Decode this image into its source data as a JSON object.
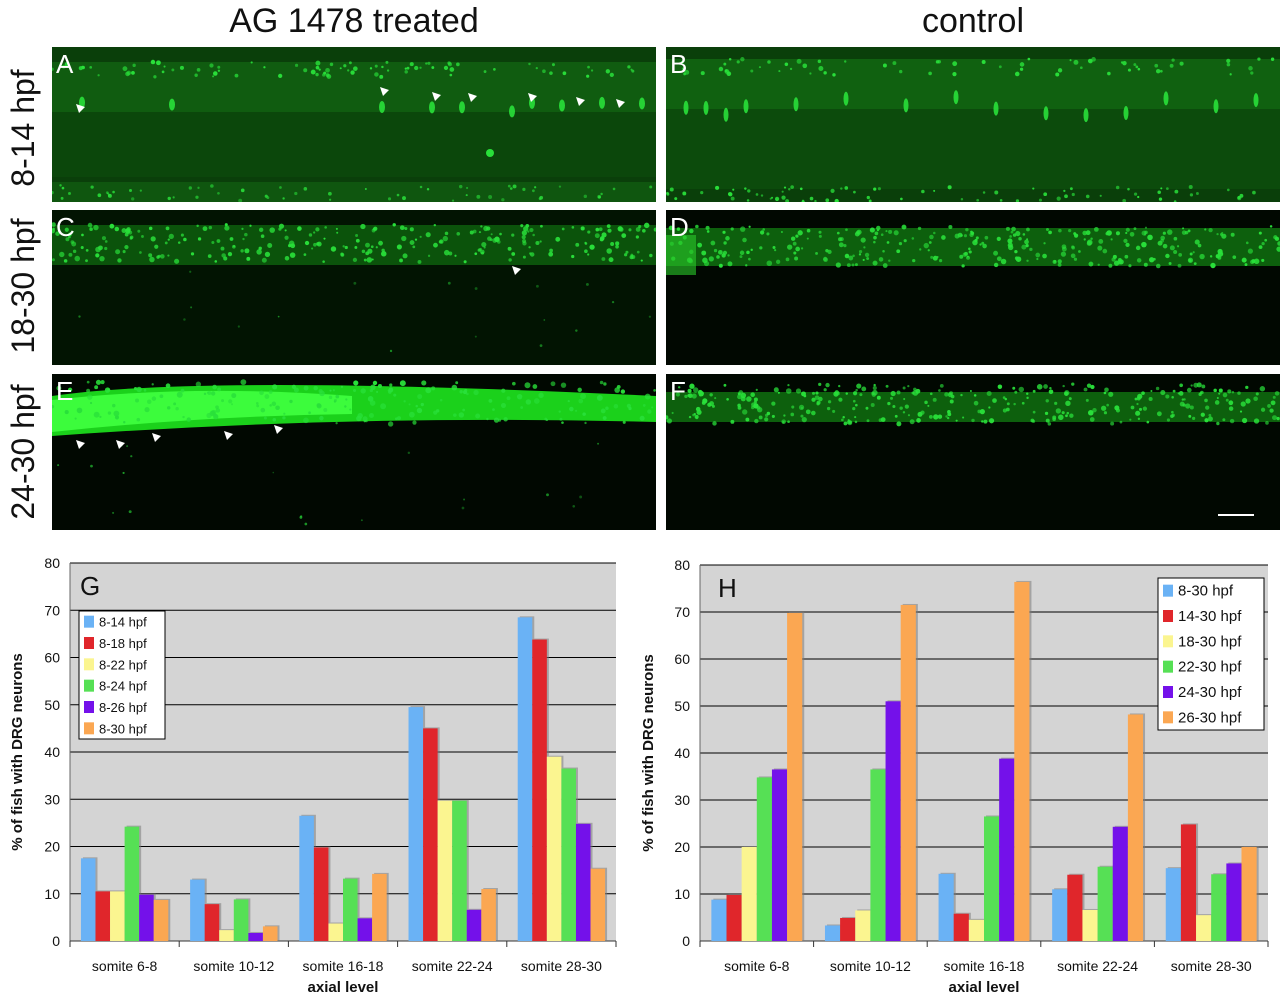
{
  "header": {
    "left_title": "AG 1478 treated",
    "right_title": "control"
  },
  "rows": [
    {
      "label": "8-14 hpf"
    },
    {
      "label": "18-30 hpf"
    },
    {
      "label": "24-30 hpf"
    }
  ],
  "panels": {
    "A": "A",
    "B": "B",
    "C": "C",
    "D": "D",
    "E": "E",
    "F": "F"
  },
  "colors": {
    "plot_bg": "#d4d4d4",
    "grid": "#000000",
    "fluor": "#29e03a"
  },
  "chart_data": [
    {
      "type": "bar",
      "panel": "G",
      "categories": [
        "somite 6-8",
        "somite 10-12",
        "somite 16-18",
        "somite 22-24",
        "somite 28-30"
      ],
      "xlabel": "axial level",
      "ylabel": "% of fish with DRG neurons",
      "ylim": [
        0,
        80
      ],
      "yticks": [
        0,
        10,
        20,
        30,
        40,
        50,
        60,
        70,
        80
      ],
      "legend_position": "top-left",
      "series": [
        {
          "name": "8-14 hpf",
          "color": "#6ab2f5",
          "values": [
            17.5,
            13,
            26.5,
            49.5,
            68.5
          ]
        },
        {
          "name": "8-18 hpf",
          "color": "#e0262b",
          "values": [
            10.5,
            7.8,
            19.8,
            45,
            63.8
          ]
        },
        {
          "name": "8-22 hpf",
          "color": "#fbf590",
          "values": [
            10.5,
            2.3,
            3.7,
            29.7,
            39
          ]
        },
        {
          "name": "8-24 hpf",
          "color": "#56e055",
          "values": [
            24.2,
            8.8,
            13.2,
            29.7,
            36.5
          ]
        },
        {
          "name": "8-26 hpf",
          "color": "#7411ea",
          "values": [
            9.8,
            1.7,
            4.8,
            6.6,
            24.8
          ]
        },
        {
          "name": "8-30 hpf",
          "color": "#fba752",
          "values": [
            8.7,
            3.1,
            14.2,
            11,
            15.3
          ]
        }
      ]
    },
    {
      "type": "bar",
      "panel": "H",
      "categories": [
        "somite 6-8",
        "somite 10-12",
        "somite 16-18",
        "somite 22-24",
        "somite 28-30"
      ],
      "xlabel": "axial level",
      "ylabel": "% of fish with DRG neurons",
      "ylim": [
        0,
        80
      ],
      "yticks": [
        0,
        10,
        20,
        30,
        40,
        50,
        60,
        70,
        80
      ],
      "legend_position": "top-right",
      "series": [
        {
          "name": "8-30 hpf",
          "color": "#6ab2f5",
          "values": [
            8.8,
            3.3,
            14.3,
            11,
            15.5
          ]
        },
        {
          "name": "14-30 hpf",
          "color": "#e0262b",
          "values": [
            9.8,
            4.9,
            5.8,
            14.1,
            24.8
          ]
        },
        {
          "name": "18-30 hpf",
          "color": "#fbf590",
          "values": [
            20,
            6.5,
            4.5,
            6.6,
            5.5
          ]
        },
        {
          "name": "22-30 hpf",
          "color": "#56e055",
          "values": [
            34.8,
            36.5,
            26.5,
            15.8,
            14.2
          ]
        },
        {
          "name": "24-30 hpf",
          "color": "#7411ea",
          "values": [
            36.5,
            51,
            38.8,
            24.3,
            16.5
          ]
        },
        {
          "name": "26-30 hpf",
          "color": "#fba752",
          "values": [
            69.8,
            71.5,
            76.4,
            48.2,
            20
          ]
        }
      ]
    }
  ]
}
